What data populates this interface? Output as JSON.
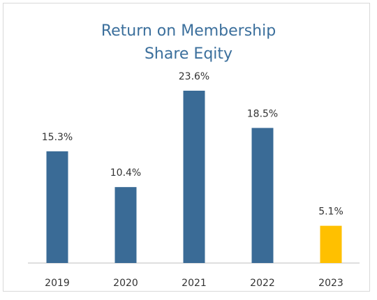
{
  "chart_data": {
    "type": "bar",
    "title": "Return on Membership Share Eqity",
    "categories": [
      "2019",
      "2020",
      "2021",
      "2022",
      "2023"
    ],
    "values": [
      15.3,
      10.4,
      23.6,
      18.5,
      5.1
    ],
    "value_labels": [
      "15.3%",
      "10.4%",
      "23.6%",
      "18.5%",
      "5.1%"
    ],
    "colors": [
      "#3a6b96",
      "#3a6b96",
      "#3a6b96",
      "#3a6b96",
      "#ffc000"
    ]
  }
}
